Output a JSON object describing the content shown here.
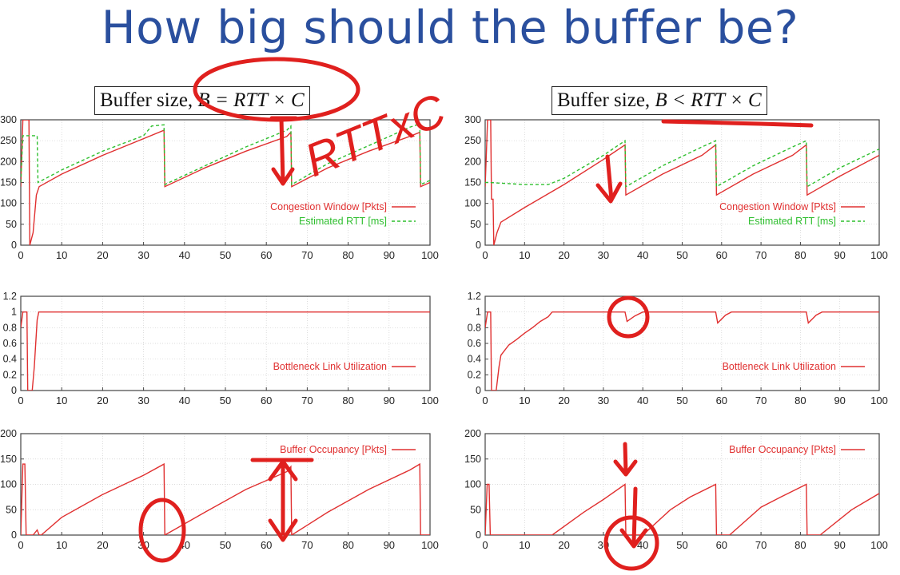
{
  "slide": {
    "title": "How big should the buffer be?",
    "annotation_text": "RTTxC"
  },
  "captions": [
    {
      "prefix": "Buffer size, ",
      "math": "B = RTT × C"
    },
    {
      "prefix": "Buffer size, ",
      "math": "B < RTT × C"
    }
  ],
  "colors": {
    "red": "#e03030",
    "green": "#2fbf2f",
    "ink": "#e0201e",
    "title": "#2a4f9e",
    "grid": "#cfcfcf"
  },
  "chart_data": [
    {
      "id": "left-cwnd",
      "type": "line",
      "xlim": [
        0,
        100
      ],
      "ylim": [
        0,
        300
      ],
      "xticks": [
        0,
        10,
        20,
        30,
        40,
        50,
        60,
        70,
        80,
        90,
        100
      ],
      "yticks": [
        0,
        50,
        100,
        150,
        200,
        250,
        300
      ],
      "legend_position": "lower-right",
      "series": [
        {
          "name": "Congestion Window [Pkts]",
          "color": "#e03030",
          "dash": "solid",
          "points": [
            [
              0,
              140
            ],
            [
              0.5,
              300
            ],
            [
              2,
              300
            ],
            [
              2.2,
              0
            ],
            [
              3,
              30
            ],
            [
              3.8,
              120
            ],
            [
              4.5,
              140
            ],
            [
              10,
              170
            ],
            [
              20,
              215
            ],
            [
              30,
              255
            ],
            [
              35,
              275
            ],
            [
              35.2,
              140
            ],
            [
              45,
              185
            ],
            [
              55,
              225
            ],
            [
              65,
              260
            ],
            [
              66,
              270
            ],
            [
              66.2,
              140
            ],
            [
              75,
              185
            ],
            [
              85,
              225
            ],
            [
              95,
              260
            ],
            [
              97.5,
              270
            ],
            [
              97.7,
              140
            ],
            [
              100,
              150
            ]
          ]
        },
        {
          "name": "Estimated RTT [ms]",
          "color": "#2fbf2f",
          "dash": "4,3",
          "points": [
            [
              0,
              150
            ],
            [
              0.5,
              262
            ],
            [
              4,
              262
            ],
            [
              4.2,
              150
            ],
            [
              10,
              180
            ],
            [
              20,
              225
            ],
            [
              30,
              262
            ],
            [
              32,
              285
            ],
            [
              35,
              288
            ],
            [
              35.2,
              145
            ],
            [
              45,
              190
            ],
            [
              55,
              235
            ],
            [
              65,
              275
            ],
            [
              66,
              285
            ],
            [
              66.2,
              145
            ],
            [
              75,
              195
            ],
            [
              85,
              238
            ],
            [
              95,
              282
            ],
            [
              97.5,
              290
            ],
            [
              97.7,
              145
            ],
            [
              100,
              155
            ]
          ]
        }
      ]
    },
    {
      "id": "right-cwnd",
      "type": "line",
      "xlim": [
        0,
        100
      ],
      "ylim": [
        0,
        300
      ],
      "xticks": [
        0,
        10,
        20,
        30,
        40,
        50,
        60,
        70,
        80,
        90,
        100
      ],
      "yticks": [
        0,
        50,
        100,
        150,
        200,
        250,
        300
      ],
      "legend_position": "lower-right",
      "series": [
        {
          "name": "Congestion Window [Pkts]",
          "color": "#e03030",
          "dash": "solid",
          "points": [
            [
              0,
              140
            ],
            [
              0.6,
              300
            ],
            [
              1.4,
              300
            ],
            [
              1.6,
              110
            ],
            [
              2,
              110
            ],
            [
              2.2,
              0
            ],
            [
              3,
              30
            ],
            [
              4,
              55
            ],
            [
              10,
              90
            ],
            [
              20,
              145
            ],
            [
              30,
              205
            ],
            [
              35.5,
              240
            ],
            [
              35.7,
              120
            ],
            [
              45,
              170
            ],
            [
              55,
              215
            ],
            [
              58.5,
              240
            ],
            [
              58.7,
              120
            ],
            [
              68,
              170
            ],
            [
              78,
              215
            ],
            [
              81.5,
              240
            ],
            [
              81.7,
              120
            ],
            [
              90,
              165
            ],
            [
              100,
              215
            ]
          ]
        },
        {
          "name": "Estimated RTT [ms]",
          "color": "#2fbf2f",
          "dash": "4,3",
          "points": [
            [
              0,
              150
            ],
            [
              1,
              150
            ],
            [
              10,
              145
            ],
            [
              16,
              145
            ],
            [
              20,
              160
            ],
            [
              30,
              215
            ],
            [
              35.5,
              250
            ],
            [
              35.7,
              140
            ],
            [
              45,
              190
            ],
            [
              55,
              235
            ],
            [
              58.5,
              250
            ],
            [
              58.7,
              140
            ],
            [
              68,
              190
            ],
            [
              78,
              235
            ],
            [
              81.5,
              250
            ],
            [
              81.7,
              140
            ],
            [
              90,
              185
            ],
            [
              100,
              230
            ]
          ]
        }
      ]
    },
    {
      "id": "left-util",
      "type": "line",
      "xlim": [
        0,
        100
      ],
      "ylim": [
        0,
        1.2
      ],
      "xticks": [
        0,
        10,
        20,
        30,
        40,
        50,
        60,
        70,
        80,
        90,
        100
      ],
      "yticks": [
        0,
        0.2,
        0.4,
        0.6,
        0.8,
        1,
        1.2
      ],
      "legend_position": "lower-right",
      "series": [
        {
          "name": "Bottleneck Link Utilization",
          "color": "#e03030",
          "dash": "solid",
          "points": [
            [
              0,
              0.8
            ],
            [
              0.5,
              1
            ],
            [
              1.5,
              1
            ],
            [
              1.7,
              0
            ],
            [
              2.8,
              0
            ],
            [
              3.3,
              0.3
            ],
            [
              4,
              0.9
            ],
            [
              4.4,
              1
            ],
            [
              100,
              1
            ]
          ]
        }
      ]
    },
    {
      "id": "right-util",
      "type": "line",
      "xlim": [
        0,
        100
      ],
      "ylim": [
        0,
        1.2
      ],
      "xticks": [
        0,
        10,
        20,
        30,
        40,
        50,
        60,
        70,
        80,
        90,
        100
      ],
      "yticks": [
        0,
        0.2,
        0.4,
        0.6,
        0.8,
        1,
        1.2
      ],
      "legend_position": "lower-right",
      "series": [
        {
          "name": "Bottleneck Link Utilization",
          "color": "#e03030",
          "dash": "solid",
          "points": [
            [
              0,
              0.8
            ],
            [
              0.6,
              1
            ],
            [
              1.4,
              1
            ],
            [
              1.6,
              0
            ],
            [
              2.8,
              0
            ],
            [
              3.5,
              0.3
            ],
            [
              4,
              0.45
            ],
            [
              6,
              0.58
            ],
            [
              8,
              0.65
            ],
            [
              10,
              0.73
            ],
            [
              12,
              0.8
            ],
            [
              14,
              0.88
            ],
            [
              16,
              0.94
            ],
            [
              17,
              1
            ],
            [
              35.5,
              1
            ],
            [
              36,
              0.88
            ],
            [
              38,
              0.95
            ],
            [
              40,
              1
            ],
            [
              58.5,
              1
            ],
            [
              59,
              0.86
            ],
            [
              61,
              0.96
            ],
            [
              62.5,
              1
            ],
            [
              81.5,
              1
            ],
            [
              82,
              0.86
            ],
            [
              84,
              0.96
            ],
            [
              85.5,
              1
            ],
            [
              100,
              1
            ]
          ]
        }
      ]
    },
    {
      "id": "left-buffer",
      "type": "line",
      "xlim": [
        0,
        100
      ],
      "ylim": [
        0,
        200
      ],
      "xticks": [
        0,
        10,
        20,
        30,
        40,
        50,
        60,
        70,
        80,
        90,
        100
      ],
      "yticks": [
        0,
        50,
        100,
        150,
        200
      ],
      "legend_position": "top-right",
      "series": [
        {
          "name": "Buffer Occupancy [Pkts]",
          "color": "#e03030",
          "dash": "solid",
          "points": [
            [
              0,
              0
            ],
            [
              0.5,
              140
            ],
            [
              1,
              140
            ],
            [
              1.3,
              0
            ],
            [
              3,
              0
            ],
            [
              4,
              10
            ],
            [
              4.5,
              0
            ],
            [
              5,
              0
            ],
            [
              10,
              35
            ],
            [
              20,
              80
            ],
            [
              30,
              118
            ],
            [
              35,
              140
            ],
            [
              35.2,
              0
            ],
            [
              45,
              45
            ],
            [
              55,
              90
            ],
            [
              65,
              125
            ],
            [
              66,
              135
            ],
            [
              66.2,
              0
            ],
            [
              75,
              45
            ],
            [
              85,
              90
            ],
            [
              95,
              128
            ],
            [
              97.5,
              140
            ],
            [
              97.7,
              0
            ],
            [
              100,
              0
            ]
          ]
        }
      ]
    },
    {
      "id": "right-buffer",
      "type": "line",
      "xlim": [
        0,
        100
      ],
      "ylim": [
        0,
        200
      ],
      "xticks": [
        0,
        10,
        20,
        30,
        40,
        50,
        60,
        70,
        80,
        90,
        100
      ],
      "yticks": [
        0,
        50,
        100,
        150,
        200
      ],
      "legend_position": "top-right",
      "series": [
        {
          "name": "Buffer Occupancy [Pkts]",
          "color": "#e03030",
          "dash": "solid",
          "points": [
            [
              0,
              0
            ],
            [
              0.5,
              100
            ],
            [
              1,
              100
            ],
            [
              1.3,
              0
            ],
            [
              17,
              0
            ],
            [
              25,
              45
            ],
            [
              30,
              70
            ],
            [
              35.5,
              100
            ],
            [
              35.7,
              0
            ],
            [
              40,
              0
            ],
            [
              47,
              50
            ],
            [
              52,
              75
            ],
            [
              58.5,
              100
            ],
            [
              58.7,
              0
            ],
            [
              62,
              0
            ],
            [
              70,
              55
            ],
            [
              75,
              75
            ],
            [
              81.5,
              100
            ],
            [
              81.7,
              0
            ],
            [
              85,
              0
            ],
            [
              93,
              50
            ],
            [
              100,
              82
            ]
          ]
        }
      ]
    }
  ]
}
